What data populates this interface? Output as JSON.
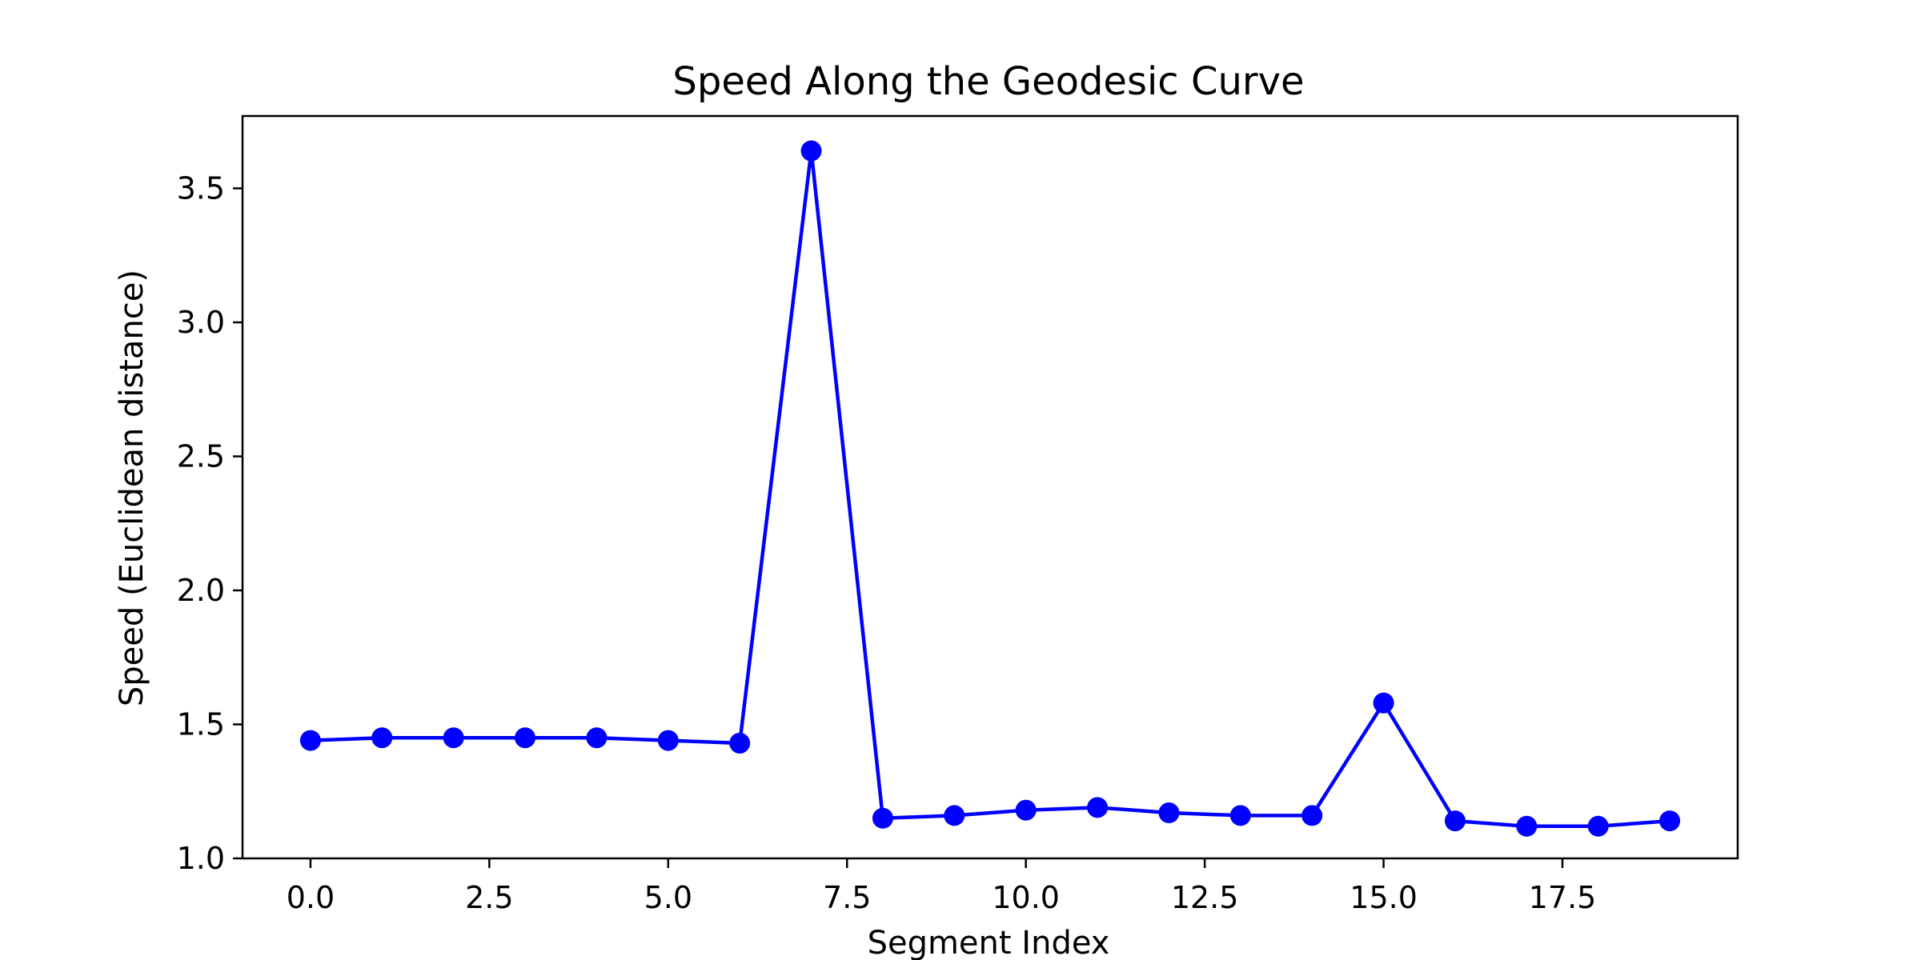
{
  "chart_data": {
    "type": "line",
    "title": "Speed Along the Geodesic Curve",
    "xlabel": "Segment Index",
    "ylabel": "Speed (Euclidean distance)",
    "xlim": [
      -0.95,
      19.95
    ],
    "ylim": [
      1.0,
      3.77
    ],
    "xticks": [
      0,
      2.5,
      5,
      7.5,
      10,
      12.5,
      15,
      17.5
    ],
    "xtick_labels": [
      "0.0",
      "2.5",
      "5.0",
      "7.5",
      "10.0",
      "12.5",
      "15.0",
      "17.5"
    ],
    "yticks": [
      1.0,
      1.5,
      2.0,
      2.5,
      3.0,
      3.5
    ],
    "ytick_labels": [
      "1.0",
      "1.5",
      "2.0",
      "2.5",
      "3.0",
      "3.5"
    ],
    "grid": false,
    "series": [
      {
        "color": "#0000ff",
        "marker": "circle",
        "x": [
          0,
          1,
          2,
          3,
          4,
          5,
          6,
          7,
          8,
          9,
          10,
          11,
          12,
          13,
          14,
          15,
          16,
          17,
          18,
          19
        ],
        "y": [
          1.44,
          1.45,
          1.45,
          1.45,
          1.45,
          1.44,
          1.43,
          3.64,
          1.15,
          1.16,
          1.18,
          1.19,
          1.17,
          1.16,
          1.16,
          1.58,
          1.14,
          1.12,
          1.12,
          1.14
        ]
      }
    ]
  }
}
